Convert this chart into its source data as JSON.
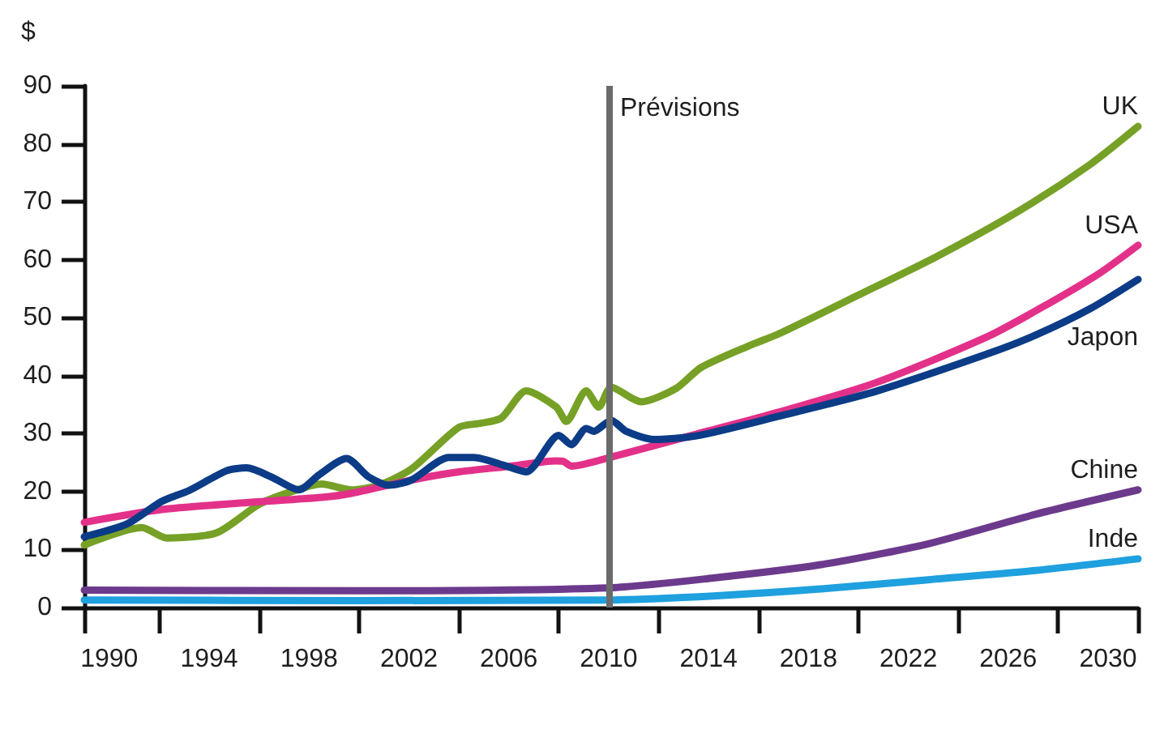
{
  "chart_data": {
    "type": "line",
    "ylabel": "$",
    "xlim": [
      1989,
      2031.2
    ],
    "xticks": [
      {
        "value": 1989,
        "label": null
      },
      1990,
      {
        "value": 1992,
        "label": null
      },
      1994,
      {
        "value": 1996,
        "label": null
      },
      1998,
      {
        "value": 2000,
        "label": null
      },
      2002,
      {
        "value": 2004,
        "label": null
      },
      2006,
      {
        "value": 2008,
        "label": null
      },
      2010,
      {
        "value": 2012,
        "label": null
      },
      2014,
      {
        "value": 2016,
        "label": null
      },
      2018,
      {
        "value": 2020,
        "label": null
      },
      2022,
      {
        "value": 2024,
        "label": null
      },
      2026,
      {
        "value": 2028,
        "label": null
      },
      2030,
      {
        "value": 2031.2,
        "label": null
      }
    ],
    "ylim": [
      0,
      90
    ],
    "yticks": [
      0,
      10,
      20,
      30,
      40,
      50,
      60,
      70,
      80,
      90
    ],
    "grid": false,
    "ref_lines": [
      {
        "axis": "x",
        "value": 2010,
        "label": "Prévisions",
        "color": "#6b6b6b"
      }
    ],
    "series": [
      {
        "name": "UK",
        "color": "#76a126",
        "x": [
          1989,
          1991.3,
          1992.3,
          1994.3,
          1996,
          1997.3,
          1998.5,
          1999.7,
          2000.8,
          2002.1,
          2004,
          2004.9,
          2005.7,
          2006.7,
          2007.9,
          2008.3,
          2009.1,
          2009.6,
          2010.1,
          2011.3,
          2012.7,
          2013.7,
          2015.7,
          2016.8,
          2020,
          2023.2,
          2026.5,
          2029.3,
          2031.2
        ],
        "values": [
          10.8,
          13.8,
          12.0,
          12.9,
          17.8,
          20.0,
          21.3,
          20.3,
          21.1,
          23.9,
          31.1,
          31.8,
          32.7,
          37.4,
          34.6,
          32.1,
          37.4,
          34.6,
          38.0,
          35.5,
          37.8,
          41.4,
          45.3,
          47.2,
          53.9,
          60.7,
          68.6,
          76.5,
          83.0
        ]
      },
      {
        "name": "USA",
        "color": "#e3318a",
        "x": [
          1989,
          1992.1,
          1995.5,
          1998.5,
          1999.7,
          2002.1,
          2004,
          2006.1,
          2007.9,
          2008.2,
          2008.5,
          2010.3,
          2013.5,
          2016.8,
          2020.7,
          2025.2,
          2027.6,
          2029.7,
          2031.2
        ],
        "values": [
          14.7,
          16.9,
          18.1,
          19.0,
          19.7,
          22.0,
          23.4,
          24.4,
          25.3,
          25.2,
          24.4,
          26.2,
          29.9,
          33.7,
          38.8,
          46.8,
          52.4,
          57.8,
          62.5
        ]
      },
      {
        "name": "Japon",
        "color": "#0c3c87",
        "x": [
          1989,
          1990.7,
          1992.1,
          1993.2,
          1994.7,
          1995.5,
          1996.5,
          1997.6,
          1998.4,
          1999.5,
          2000.4,
          2001.2,
          2002.1,
          2003.6,
          2004.6,
          2005.9,
          2006.7,
          2008,
          2008.5,
          2009.1,
          2009.4,
          2010.1,
          2010.7,
          2011.8,
          2013.5,
          2016.8,
          2020.7,
          2025.2,
          2027.1,
          2029.3,
          2031.2
        ],
        "values": [
          12.2,
          14.4,
          18.3,
          20.2,
          23.6,
          24.1,
          22.5,
          20.3,
          22.9,
          25.7,
          22.5,
          21.1,
          22.0,
          25.9,
          25.9,
          24.4,
          23.4,
          29.7,
          28.1,
          30.9,
          30.4,
          32.3,
          30.4,
          29.0,
          29.6,
          33.0,
          37.3,
          43.8,
          47.0,
          51.6,
          56.6
        ]
      },
      {
        "name": "Chine",
        "color": "#6c3a8c",
        "x": [
          1989,
          2000,
          2010,
          2014.2,
          2018.5,
          2022.8,
          2027.1,
          2031.2
        ],
        "values": [
          3.0,
          2.9,
          3.4,
          5.1,
          7.4,
          11.0,
          16.1,
          20.3
        ]
      },
      {
        "name": "Inde",
        "color": "#1fa0df",
        "x": [
          1989,
          2000,
          2010,
          2014.2,
          2018.5,
          2022.8,
          2027.1,
          2031.2
        ],
        "values": [
          1.3,
          1.2,
          1.3,
          2.0,
          3.2,
          4.8,
          6.4,
          8.4
        ]
      }
    ]
  }
}
